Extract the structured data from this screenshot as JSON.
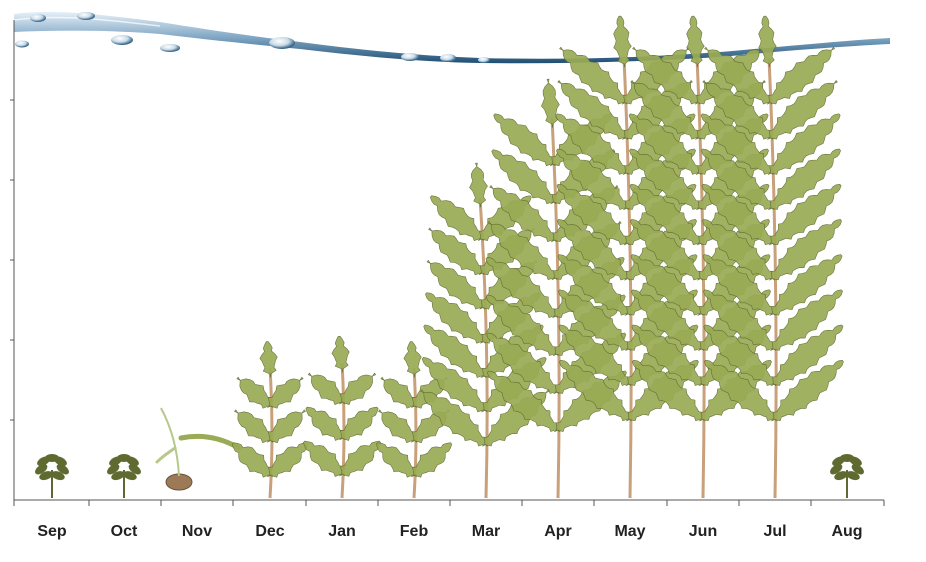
{
  "months": [
    "Sep",
    "Oct",
    "Nov",
    "Dec",
    "Jan",
    "Feb",
    "Mar",
    "Apr",
    "May",
    "Jun",
    "Jul",
    "Aug"
  ],
  "colors": {
    "water_dark": "#1f4e73",
    "water_light": "#b9d3e6",
    "stem": "#c8a07a",
    "frond": "#9aab55",
    "frond_dark": "#5f6a30",
    "axis": "#555555"
  },
  "stages": [
    {
      "month": "Sep",
      "kind": "turion"
    },
    {
      "month": "Oct",
      "kind": "turion"
    },
    {
      "month": "Nov",
      "kind": "sprout"
    },
    {
      "month": "Dec",
      "kind": "shoot"
    },
    {
      "month": "Jan",
      "kind": "shoot"
    },
    {
      "month": "Feb",
      "kind": "shoot"
    },
    {
      "month": "Mar",
      "kind": "shoot"
    },
    {
      "month": "Apr",
      "kind": "shoot"
    },
    {
      "month": "May",
      "kind": "shoot"
    },
    {
      "month": "Jun",
      "kind": "shoot"
    },
    {
      "month": "Jul",
      "kind": "shoot"
    },
    {
      "month": "Aug",
      "kind": "turion"
    }
  ],
  "icons": [
    "water-surface-icon",
    "water-drop-icon",
    "plant-icon",
    "turion-icon",
    "sprout-icon"
  ]
}
